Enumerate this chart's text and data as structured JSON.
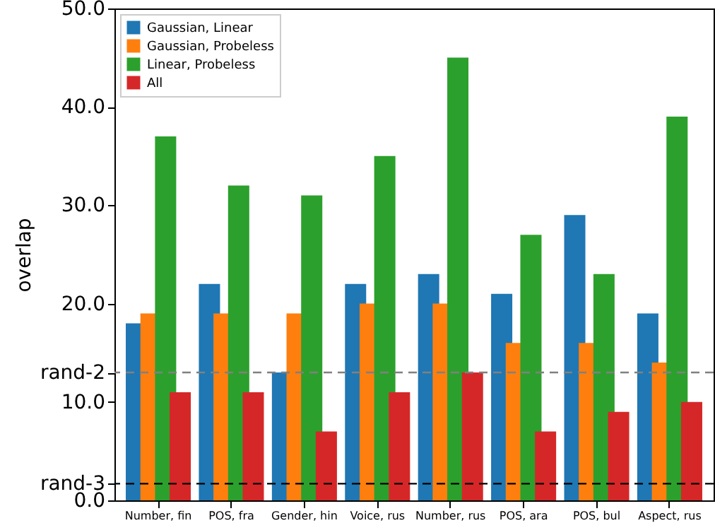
{
  "chart_data": {
    "type": "bar",
    "ylabel": "overlap",
    "categories": [
      "Number, fin",
      "POS, fra",
      "Gender, hin",
      "Voice, rus",
      "Number, rus",
      "POS, ara",
      "POS, bul",
      "Aspect, rus"
    ],
    "series": [
      {
        "name": "Gaussian, Linear",
        "color": "#1f77b4",
        "values": [
          18,
          22,
          13,
          22,
          23,
          21,
          29,
          19
        ]
      },
      {
        "name": "Gaussian, Probeless",
        "color": "#ff7f0e",
        "values": [
          19,
          19,
          19,
          20,
          20,
          16,
          16,
          14
        ]
      },
      {
        "name": "Linear, Probeless",
        "color": "#2ca02c",
        "values": [
          37,
          32,
          31,
          35,
          45,
          27,
          23,
          39
        ]
      },
      {
        "name": "All",
        "color": "#d62728",
        "values": [
          11,
          11,
          7,
          11,
          13,
          7,
          9,
          10
        ]
      }
    ],
    "ylim": [
      0,
      50
    ],
    "yticks": [
      {
        "value": 0,
        "label": "0.0"
      },
      {
        "value": 1.7,
        "label": "rand-3"
      },
      {
        "value": 10,
        "label": "10.0"
      },
      {
        "value": 13,
        "label": "rand-2"
      },
      {
        "value": 20,
        "label": "20.0"
      },
      {
        "value": 30,
        "label": "30.0"
      },
      {
        "value": 40,
        "label": "40.0"
      },
      {
        "value": 50,
        "label": "50.0"
      }
    ],
    "ref_lines": [
      {
        "axis": "y",
        "value": 13,
        "color": "#808080",
        "line_style": "dashed"
      },
      {
        "axis": "y",
        "value": 1.7,
        "color": "#000000",
        "line_style": "dashed"
      }
    ],
    "legend": "top left",
    "grid": false
  }
}
